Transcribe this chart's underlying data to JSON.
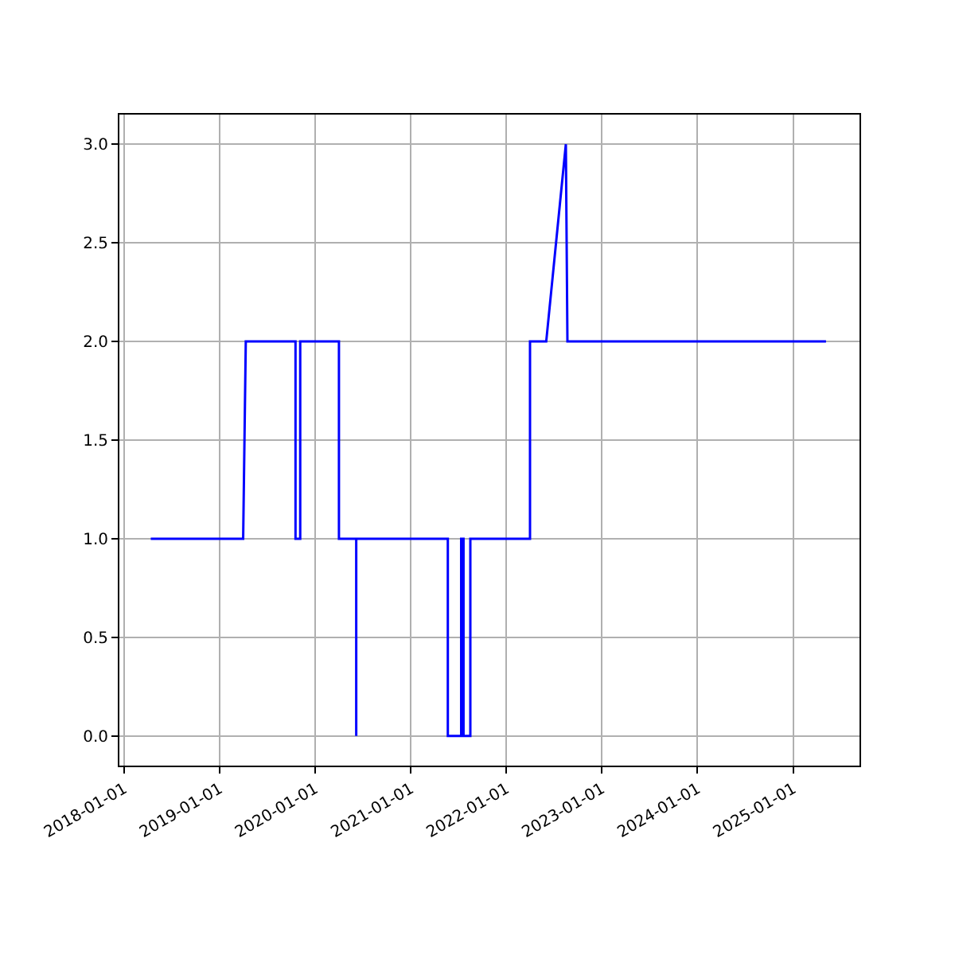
{
  "chart_data": {
    "type": "line",
    "x": [
      "2018-04-13",
      "2019-04-01",
      "2019-04-11",
      "2019-10-18",
      "2019-10-18",
      "2019-11-05",
      "2019-11-05",
      "2020-04-01",
      "2020-04-01",
      "2020-06-06",
      "2020-06-06",
      "2020-06-06",
      "2021-05-22",
      "2021-05-22",
      "2021-07-12",
      "2021-07-12",
      "2021-07-21",
      "2021-07-21",
      "2021-08-16",
      "2021-08-16",
      "2022-04-01",
      "2022-04-01",
      "2022-06-02",
      "2022-08-16",
      "2022-08-22",
      "2025-05-06"
    ],
    "series": [
      {
        "color": "#0000ff",
        "values": [
          1,
          1,
          2,
          2,
          1,
          1,
          2,
          2,
          1,
          1,
          0,
          1,
          1,
          0,
          0,
          1,
          1,
          0,
          0,
          1,
          1,
          2,
          2,
          3,
          2,
          2
        ]
      }
    ],
    "xlim": [
      "2017-12-14",
      "2025-09-11"
    ],
    "xticks": [
      "2018-01-01",
      "2019-01-01",
      "2020-01-01",
      "2021-01-01",
      "2022-01-01",
      "2023-01-01",
      "2024-01-01",
      "2025-01-01"
    ],
    "ylim": [
      -0.15,
      3.15
    ],
    "yticks": [
      {
        "value": 0,
        "label": "0.0"
      },
      {
        "value": 0.5,
        "label": "0.5"
      },
      {
        "value": 1,
        "label": "1.0"
      },
      {
        "value": 1.5,
        "label": "1.5"
      },
      {
        "value": 2,
        "label": "2.0"
      },
      {
        "value": 2.5,
        "label": "2.5"
      },
      {
        "value": 3,
        "label": "3.0"
      }
    ],
    "grid": true,
    "legend": false,
    "marker": "none",
    "line_style": "solid"
  }
}
